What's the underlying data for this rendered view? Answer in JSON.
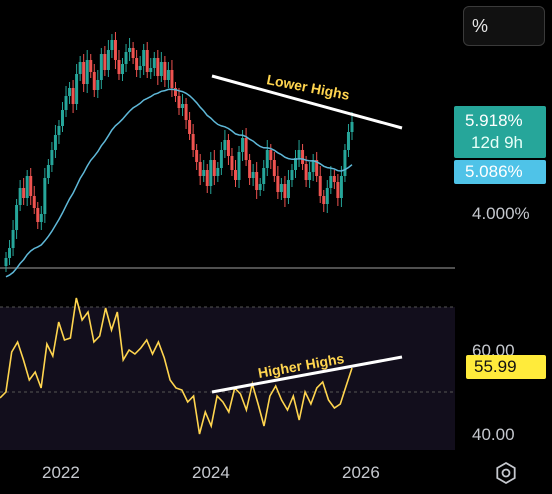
{
  "chart_data": [
    {
      "type": "candlestick",
      "title": "",
      "y_scale": "percent",
      "y_tick_labels": [
        "4.000%"
      ],
      "x_tick_labels": [
        "2022",
        "2024",
        "2026"
      ],
      "last_price": "5.918%",
      "countdown": "12d 9h",
      "moving_average_value": "5.086%",
      "annotation": "Lower Highs",
      "colors": {
        "up": "#26a69a",
        "down": "#ef5350",
        "ma": "#5fb8d8",
        "trendline": "#ffffff",
        "annotation_text": "#ffd54f"
      }
    },
    {
      "type": "line",
      "indicator": "RSI",
      "y_tick_labels": [
        "60.00",
        "40.00"
      ],
      "current_value": "55.99",
      "annotation": "Higher Highs",
      "colors": {
        "line": "#ffd54f",
        "band": "#120e1c",
        "trendline": "#ffffff",
        "annotation_text": "#ffd54f"
      }
    }
  ],
  "ui": {
    "percent_button_label": "%",
    "settings_icon": "gear-icon"
  }
}
